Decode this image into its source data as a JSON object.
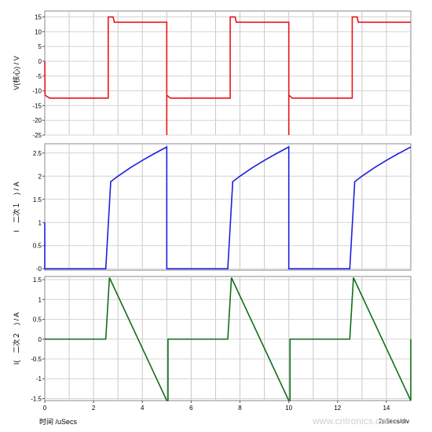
{
  "chart_data": [
    {
      "type": "line",
      "ylabel": "V(核心) / V",
      "xlim": [
        0,
        15
      ],
      "ylim": [
        -25,
        17
      ],
      "yticks": [
        15,
        10,
        5,
        0,
        -5,
        -10,
        -15,
        -20,
        -25
      ],
      "color": "#e8141b",
      "series": [
        {
          "x": [
            0,
            0.01,
            0.2,
            2.5,
            2.6,
            2.6,
            2.8,
            2.85,
            5,
            5,
            5,
            5.15,
            5.2,
            7.5,
            7.6,
            7.6,
            7.8,
            7.85,
            10,
            10,
            10,
            10.15,
            10.2,
            12.5,
            12.6,
            12.6,
            12.8,
            12.85,
            15
          ],
          "y": [
            0,
            -11.5,
            -12.5,
            -12.5,
            -12.5,
            15,
            15,
            13.2,
            13.2,
            -25,
            -11.5,
            -12.5,
            -12.5,
            -12.5,
            -12.5,
            15,
            15,
            13.2,
            13.2,
            -25,
            -11.5,
            -12.5,
            -12.5,
            -12.5,
            -12.5,
            15,
            15,
            13.2,
            13.2
          ]
        }
      ]
    },
    {
      "type": "line",
      "ylabel": "I　二次１　) / A",
      "xlim": [
        0,
        15
      ],
      "ylim": [
        -0.03,
        2.7
      ],
      "yticks": [
        2.5,
        2,
        1.5,
        1,
        0.5,
        0
      ],
      "ytick_labels": [
        "2.5",
        "2",
        "1.5",
        "1",
        "0.5",
        "-0"
      ],
      "color": "#1f1fe0",
      "series": [
        {
          "x": [
            0,
            0,
            0.05,
            2.5,
            2.7,
            2.7,
            3,
            3.5,
            4,
            4.5,
            5,
            5,
            5.05,
            7.5,
            7.7,
            7.7,
            8,
            8.5,
            9,
            9.5,
            10,
            10,
            10.05,
            12.5,
            12.7,
            12.7,
            13,
            13.5,
            14,
            14.5,
            15
          ],
          "y": [
            1,
            0,
            0,
            0,
            1.85,
            1.88,
            2.0,
            2.18,
            2.34,
            2.49,
            2.63,
            0,
            0,
            0,
            1.85,
            1.88,
            2.0,
            2.18,
            2.34,
            2.49,
            2.63,
            0,
            0,
            0,
            1.85,
            1.88,
            2.0,
            2.18,
            2.34,
            2.49,
            2.63
          ]
        }
      ]
    },
    {
      "type": "line",
      "ylabel": "I(　二次２　) / A",
      "xlim": [
        0,
        15
      ],
      "ylim": [
        -1.55,
        1.58
      ],
      "yticks": [
        1.5,
        1,
        0.5,
        0,
        -0.5,
        -1,
        -1.5
      ],
      "color": "#0f6e18",
      "series": [
        {
          "x": [
            0,
            2.5,
            2.65,
            5,
            5.05,
            5.05,
            7.5,
            7.65,
            10,
            10.05,
            10.05,
            12.5,
            12.65,
            15,
            15
          ],
          "y": [
            0,
            0,
            1.55,
            -1.55,
            -1.55,
            0,
            0,
            1.55,
            -1.55,
            -1.55,
            0,
            0,
            1.55,
            -1.55,
            0
          ]
        }
      ]
    }
  ],
  "xaxis": {
    "label": "时间 /uSecs",
    "ticks": [
      0,
      2,
      4,
      6,
      8,
      10,
      12,
      14
    ],
    "scale_note": "2uSecs/div"
  },
  "watermark": "www.cntronics.com"
}
